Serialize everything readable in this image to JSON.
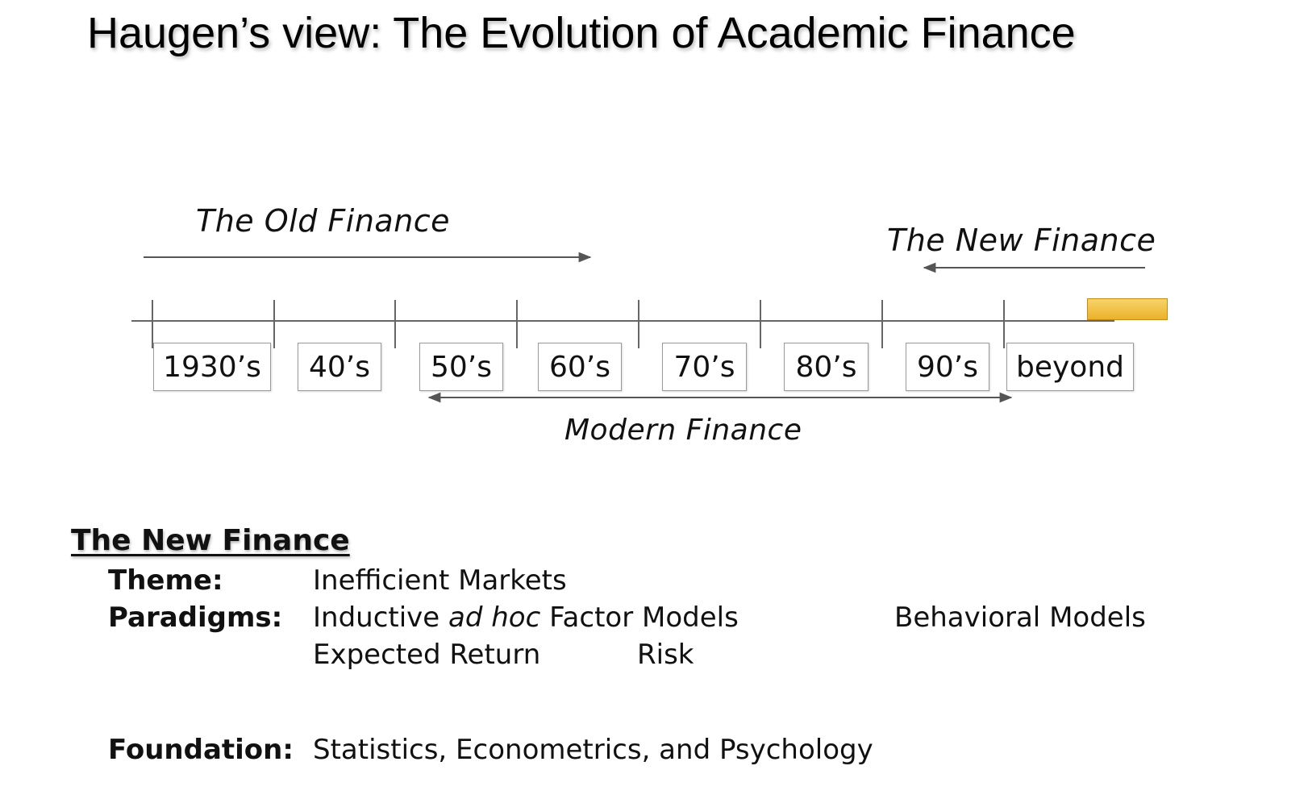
{
  "title": "Haugen’s view: The Evolution of Academic Finance",
  "timeline": {
    "old_finance_label": "The Old Finance",
    "new_finance_label": "The New Finance",
    "modern_finance_label": "Modern Finance",
    "decades": [
      "1930’s",
      "40’s",
      "50’s",
      "60’s",
      "70’s",
      "80’s",
      "90’s",
      "beyond"
    ],
    "marker_color": "#f0c040"
  },
  "new_finance": {
    "heading": "The New Finance",
    "theme_label": "Theme:",
    "theme_value": "Inefficient Markets",
    "paradigms_label": "Paradigms:",
    "paradigm_inductive": "Inductive",
    "paradigm_ad_hoc": "ad hoc",
    "paradigm_factor_models": "Factor Models",
    "paradigm_behavioral": "Behavioral Models",
    "expected_return": "Expected Return",
    "risk": "Risk",
    "foundation_label": "Foundation:",
    "foundation_value": "Statistics, Econometrics, and Psychology"
  }
}
